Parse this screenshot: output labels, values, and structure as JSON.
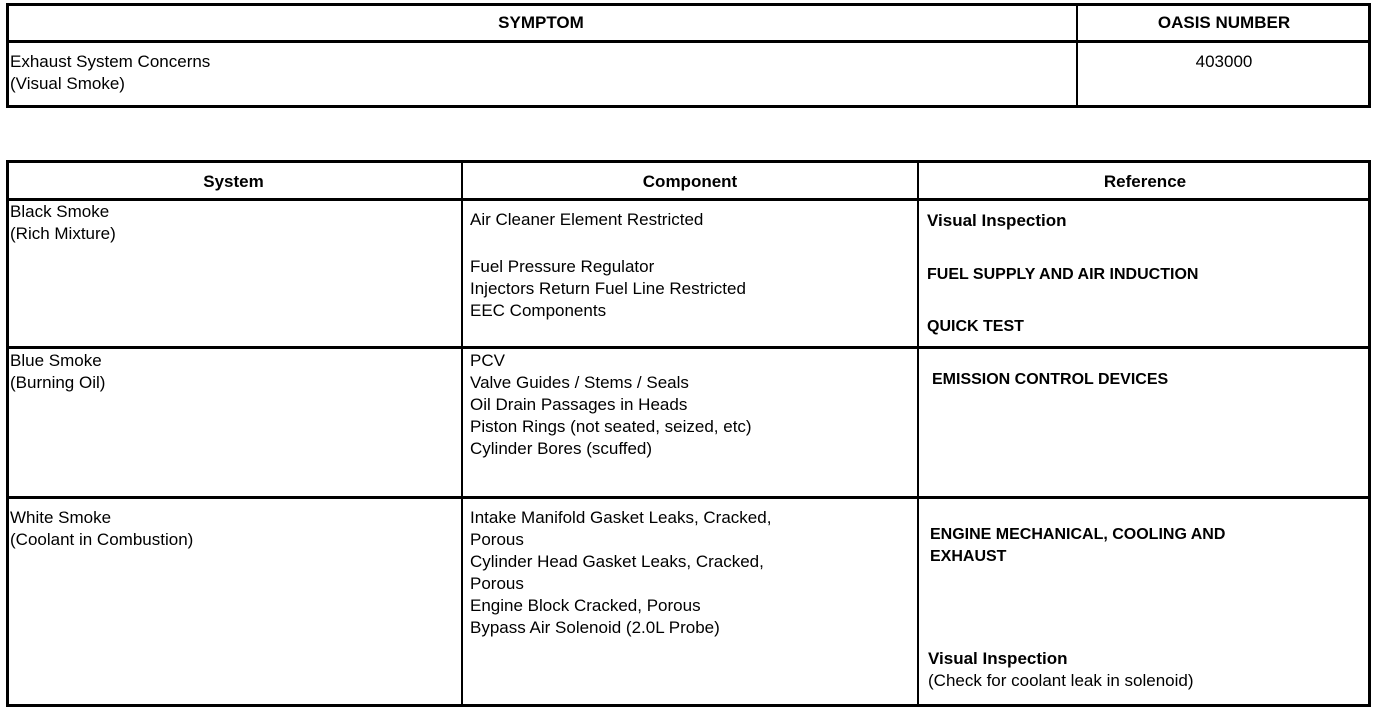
{
  "symptom_table": {
    "headers": {
      "symptom": "SYMPTOM",
      "oasis": "OASIS NUMBER"
    },
    "row": {
      "symptom_lines": [
        "Exhaust System Concerns",
        "(Visual Smoke)"
      ],
      "oasis": "403000"
    }
  },
  "diagnosis_table": {
    "headers": {
      "system": "System",
      "component": "Component",
      "reference": "Reference"
    },
    "rows": [
      {
        "system": [
          "Black Smoke",
          "(Rich Mixture)"
        ],
        "component_a": [
          "Air Cleaner Element Restricted"
        ],
        "component_b": [
          "Fuel Pressure Regulator",
          "Injectors Return Fuel Line Restricted",
          "EEC Components"
        ],
        "reference_a": "Visual  Inspection",
        "reference_b": "FUEL SUPPLY AND AIR INDUCTION",
        "reference_c": "QUICK TEST"
      },
      {
        "system": [
          "Blue Smoke",
          "(Burning Oil)"
        ],
        "component_a": [
          "PCV",
          "Valve Guides / Stems / Seals",
          "Oil Drain Passages in Heads",
          "Piston Rings (not seated, seized, etc)",
          "Cylinder Bores (scuffed)"
        ],
        "reference_a": "EMISSION CONTROL DEVICES"
      },
      {
        "system": [
          "White Smoke",
          "(Coolant in Combustion)"
        ],
        "component_a": [
          "Intake Manifold Gasket Leaks, Cracked,",
          "Porous",
          "Cylinder Head Gasket Leaks, Cracked,",
          "Porous",
          "Engine Block Cracked, Porous",
          "Bypass Air Solenoid (2.0L Probe)"
        ],
        "reference_a": [
          "ENGINE MECHANICAL, COOLING AND",
          "EXHAUST"
        ],
        "reference_b": [
          "Visual  Inspection",
          "(Check for coolant leak in solenoid)"
        ]
      }
    ]
  }
}
